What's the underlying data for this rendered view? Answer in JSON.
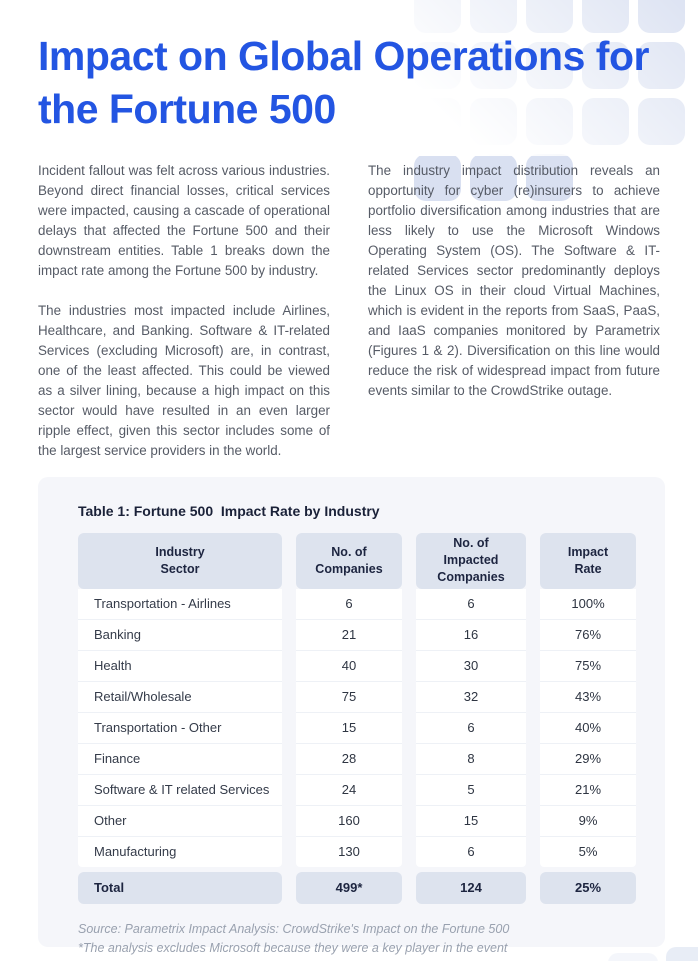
{
  "header": {
    "title": "Impact on Global Operations for the Fortune 500"
  },
  "body": {
    "left_column": {
      "paragraph_1": "Incident fallout was felt across various industries. Beyond direct financial losses, critical services were impacted, causing a cascade of operational delays that affected the Fortune 500 and their downstream entities. Table 1 breaks down the impact rate among the Fortune 500 by industry.",
      "paragraph_2": "The industries most impacted include Airlines, Healthcare, and Banking. Software & IT-related Services (excluding Microsoft) are, in contrast, one of the least affected. This could be viewed as a silver lining, because a high impact on this sector would have resulted in an even larger ripple effect, given this sector includes some of the largest service providers in the world."
    },
    "right_column": {
      "paragraph_1": "The industry impact distribution reveals an opportunity for cyber (re)insurers to achieve portfolio diversification among industries that are less likely to use the Microsoft Windows Operating System (OS). The Software & IT-related Services sector predominantly deploys the Linux OS in their cloud Virtual Machines, which is evident in the reports from SaaS, PaaS, and IaaS companies monitored by Parametrix (Figures 1 & 2). Diversification on this line would reduce the risk of widespread impact from future events similar to the CrowdStrike outage."
    }
  },
  "table": {
    "caption": "Table 1: Fortune 500  Impact Rate by Industry",
    "columns": [
      "Industry Sector",
      "No. of Companies",
      "No. of Impacted Companies",
      "Impact Rate"
    ],
    "rows": [
      [
        "Transportation - Airlines",
        "6",
        "6",
        "100%"
      ],
      [
        "Banking",
        "21",
        "16",
        "76%"
      ],
      [
        "Health",
        "40",
        "30",
        "75%"
      ],
      [
        "Retail/Wholesale",
        "75",
        "32",
        "43%"
      ],
      [
        "Transportation - Other",
        "15",
        "6",
        "40%"
      ],
      [
        "Finance",
        "28",
        "8",
        "29%"
      ],
      [
        "Software & IT related Services",
        "24",
        "5",
        "21%"
      ],
      [
        "Other",
        "160",
        "15",
        "9%"
      ],
      [
        "Manufacturing",
        "130",
        "6",
        "5%"
      ]
    ],
    "total": [
      "Total",
      "499*",
      "124",
      "25%"
    ],
    "source": "Source: Parametrix Impact Analysis: CrowdStrike's Impact on the Fortune 500",
    "footnote": "*The analysis excludes Microsoft because they were a key player in the event"
  },
  "colors": {
    "heading_blue": "#2355e2",
    "card_background": "#f5f6fa",
    "table_header_cell": "#dde3ee"
  }
}
